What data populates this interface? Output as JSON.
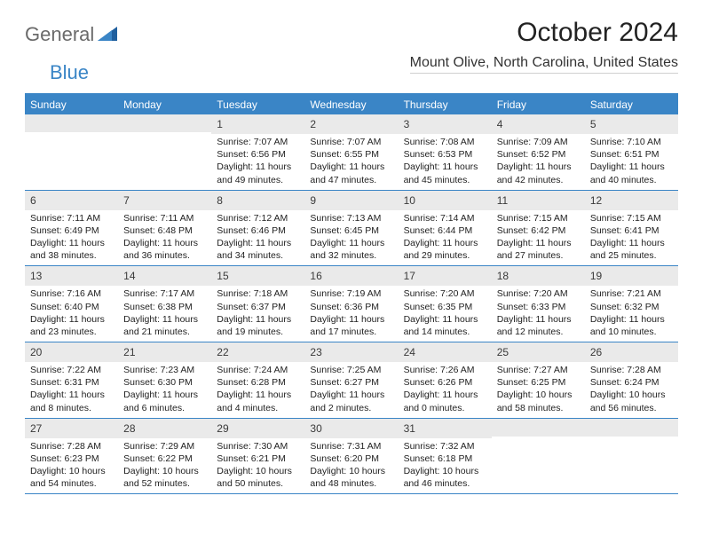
{
  "brand": {
    "part1": "General",
    "part2": "Blue"
  },
  "title": "October 2024",
  "location": "Mount Olive, North Carolina, United States",
  "colors": {
    "accent": "#3a85c6",
    "daynum_bg": "#eaeaea",
    "text": "#222222",
    "logo_gray": "#6a6a6a"
  },
  "weekdays": [
    "Sunday",
    "Monday",
    "Tuesday",
    "Wednesday",
    "Thursday",
    "Friday",
    "Saturday"
  ],
  "weeks": [
    [
      null,
      null,
      {
        "n": "1",
        "sr": "Sunrise: 7:07 AM",
        "ss": "Sunset: 6:56 PM",
        "dl1": "Daylight: 11 hours",
        "dl2": "and 49 minutes."
      },
      {
        "n": "2",
        "sr": "Sunrise: 7:07 AM",
        "ss": "Sunset: 6:55 PM",
        "dl1": "Daylight: 11 hours",
        "dl2": "and 47 minutes."
      },
      {
        "n": "3",
        "sr": "Sunrise: 7:08 AM",
        "ss": "Sunset: 6:53 PM",
        "dl1": "Daylight: 11 hours",
        "dl2": "and 45 minutes."
      },
      {
        "n": "4",
        "sr": "Sunrise: 7:09 AM",
        "ss": "Sunset: 6:52 PM",
        "dl1": "Daylight: 11 hours",
        "dl2": "and 42 minutes."
      },
      {
        "n": "5",
        "sr": "Sunrise: 7:10 AM",
        "ss": "Sunset: 6:51 PM",
        "dl1": "Daylight: 11 hours",
        "dl2": "and 40 minutes."
      }
    ],
    [
      {
        "n": "6",
        "sr": "Sunrise: 7:11 AM",
        "ss": "Sunset: 6:49 PM",
        "dl1": "Daylight: 11 hours",
        "dl2": "and 38 minutes."
      },
      {
        "n": "7",
        "sr": "Sunrise: 7:11 AM",
        "ss": "Sunset: 6:48 PM",
        "dl1": "Daylight: 11 hours",
        "dl2": "and 36 minutes."
      },
      {
        "n": "8",
        "sr": "Sunrise: 7:12 AM",
        "ss": "Sunset: 6:46 PM",
        "dl1": "Daylight: 11 hours",
        "dl2": "and 34 minutes."
      },
      {
        "n": "9",
        "sr": "Sunrise: 7:13 AM",
        "ss": "Sunset: 6:45 PM",
        "dl1": "Daylight: 11 hours",
        "dl2": "and 32 minutes."
      },
      {
        "n": "10",
        "sr": "Sunrise: 7:14 AM",
        "ss": "Sunset: 6:44 PM",
        "dl1": "Daylight: 11 hours",
        "dl2": "and 29 minutes."
      },
      {
        "n": "11",
        "sr": "Sunrise: 7:15 AM",
        "ss": "Sunset: 6:42 PM",
        "dl1": "Daylight: 11 hours",
        "dl2": "and 27 minutes."
      },
      {
        "n": "12",
        "sr": "Sunrise: 7:15 AM",
        "ss": "Sunset: 6:41 PM",
        "dl1": "Daylight: 11 hours",
        "dl2": "and 25 minutes."
      }
    ],
    [
      {
        "n": "13",
        "sr": "Sunrise: 7:16 AM",
        "ss": "Sunset: 6:40 PM",
        "dl1": "Daylight: 11 hours",
        "dl2": "and 23 minutes."
      },
      {
        "n": "14",
        "sr": "Sunrise: 7:17 AM",
        "ss": "Sunset: 6:38 PM",
        "dl1": "Daylight: 11 hours",
        "dl2": "and 21 minutes."
      },
      {
        "n": "15",
        "sr": "Sunrise: 7:18 AM",
        "ss": "Sunset: 6:37 PM",
        "dl1": "Daylight: 11 hours",
        "dl2": "and 19 minutes."
      },
      {
        "n": "16",
        "sr": "Sunrise: 7:19 AM",
        "ss": "Sunset: 6:36 PM",
        "dl1": "Daylight: 11 hours",
        "dl2": "and 17 minutes."
      },
      {
        "n": "17",
        "sr": "Sunrise: 7:20 AM",
        "ss": "Sunset: 6:35 PM",
        "dl1": "Daylight: 11 hours",
        "dl2": "and 14 minutes."
      },
      {
        "n": "18",
        "sr": "Sunrise: 7:20 AM",
        "ss": "Sunset: 6:33 PM",
        "dl1": "Daylight: 11 hours",
        "dl2": "and 12 minutes."
      },
      {
        "n": "19",
        "sr": "Sunrise: 7:21 AM",
        "ss": "Sunset: 6:32 PM",
        "dl1": "Daylight: 11 hours",
        "dl2": "and 10 minutes."
      }
    ],
    [
      {
        "n": "20",
        "sr": "Sunrise: 7:22 AM",
        "ss": "Sunset: 6:31 PM",
        "dl1": "Daylight: 11 hours",
        "dl2": "and 8 minutes."
      },
      {
        "n": "21",
        "sr": "Sunrise: 7:23 AM",
        "ss": "Sunset: 6:30 PM",
        "dl1": "Daylight: 11 hours",
        "dl2": "and 6 minutes."
      },
      {
        "n": "22",
        "sr": "Sunrise: 7:24 AM",
        "ss": "Sunset: 6:28 PM",
        "dl1": "Daylight: 11 hours",
        "dl2": "and 4 minutes."
      },
      {
        "n": "23",
        "sr": "Sunrise: 7:25 AM",
        "ss": "Sunset: 6:27 PM",
        "dl1": "Daylight: 11 hours",
        "dl2": "and 2 minutes."
      },
      {
        "n": "24",
        "sr": "Sunrise: 7:26 AM",
        "ss": "Sunset: 6:26 PM",
        "dl1": "Daylight: 11 hours",
        "dl2": "and 0 minutes."
      },
      {
        "n": "25",
        "sr": "Sunrise: 7:27 AM",
        "ss": "Sunset: 6:25 PM",
        "dl1": "Daylight: 10 hours",
        "dl2": "and 58 minutes."
      },
      {
        "n": "26",
        "sr": "Sunrise: 7:28 AM",
        "ss": "Sunset: 6:24 PM",
        "dl1": "Daylight: 10 hours",
        "dl2": "and 56 minutes."
      }
    ],
    [
      {
        "n": "27",
        "sr": "Sunrise: 7:28 AM",
        "ss": "Sunset: 6:23 PM",
        "dl1": "Daylight: 10 hours",
        "dl2": "and 54 minutes."
      },
      {
        "n": "28",
        "sr": "Sunrise: 7:29 AM",
        "ss": "Sunset: 6:22 PM",
        "dl1": "Daylight: 10 hours",
        "dl2": "and 52 minutes."
      },
      {
        "n": "29",
        "sr": "Sunrise: 7:30 AM",
        "ss": "Sunset: 6:21 PM",
        "dl1": "Daylight: 10 hours",
        "dl2": "and 50 minutes."
      },
      {
        "n": "30",
        "sr": "Sunrise: 7:31 AM",
        "ss": "Sunset: 6:20 PM",
        "dl1": "Daylight: 10 hours",
        "dl2": "and 48 minutes."
      },
      {
        "n": "31",
        "sr": "Sunrise: 7:32 AM",
        "ss": "Sunset: 6:18 PM",
        "dl1": "Daylight: 10 hours",
        "dl2": "and 46 minutes."
      },
      null,
      null
    ]
  ]
}
